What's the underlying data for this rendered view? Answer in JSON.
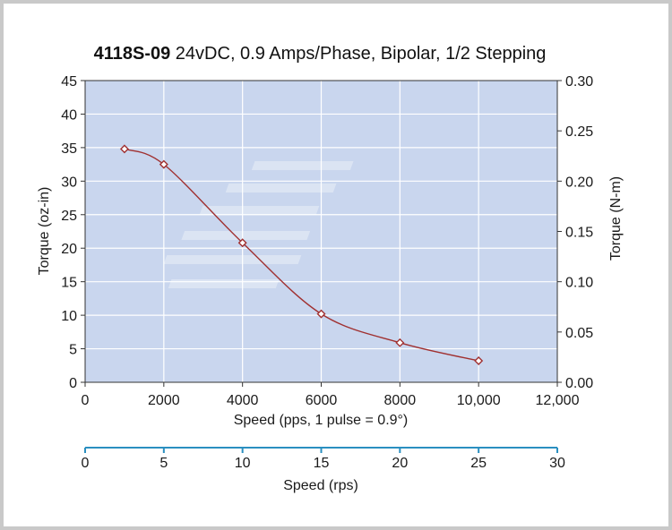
{
  "chart_data": {
    "type": "line",
    "title_bold": "4118S-09",
    "title_rest": " 24vDC, 0.9 Amps/Phase, Bipolar, 1/2 Stepping",
    "xlabel": "Speed (pps, 1 pulse = 0.9°)",
    "ylabel": "Torque (oz-in)",
    "y2label": "Torque (N-m)",
    "x2label": "Speed (rps)",
    "xlim": [
      0,
      12000
    ],
    "ylim": [
      0,
      45
    ],
    "y2lim": [
      0,
      0.3
    ],
    "x2lim": [
      0,
      30
    ],
    "x_ticks": [
      "0",
      "2000",
      "4000",
      "6000",
      "8000",
      "10,000",
      "12,000"
    ],
    "y_ticks": [
      "0",
      "5",
      "10",
      "15",
      "20",
      "25",
      "30",
      "35",
      "40",
      "45"
    ],
    "y2_ticks": [
      "0.00",
      "0.05",
      "0.10",
      "0.15",
      "0.20",
      "0.25",
      "0.30"
    ],
    "x2_ticks": [
      "0",
      "5",
      "10",
      "15",
      "20",
      "25",
      "30"
    ],
    "grid": true,
    "series": [
      {
        "x": [
          1000,
          2000,
          4000,
          6000,
          8000,
          10000
        ],
        "y": [
          34.8,
          32.5,
          20.8,
          10.2,
          5.9,
          3.2
        ]
      }
    ],
    "colors": {
      "plot_bg": "#c9d6ee",
      "grid": "#ffffff",
      "line": "#a03030",
      "marker_fill": "#ffffff",
      "x2_axis": "#2a8fc0"
    }
  }
}
